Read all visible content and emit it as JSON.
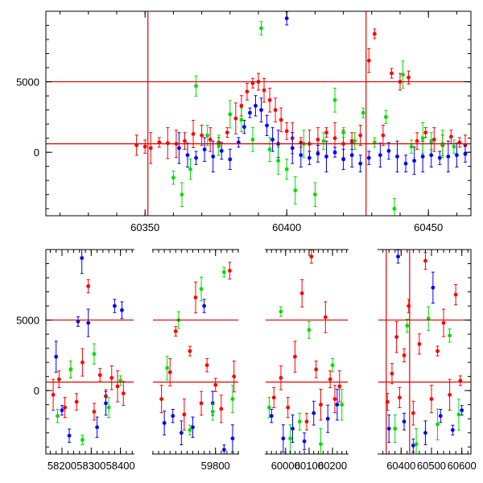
{
  "chart_data": [
    {
      "type": "scatter",
      "panel": "top",
      "title": "",
      "xlabel": "",
      "ylabel": "",
      "xlim": [
        60315,
        60465
      ],
      "ylim": [
        -4500,
        10000
      ],
      "xticks": [
        60350,
        60400,
        60450
      ],
      "xticklabels": [
        "60350",
        "60400",
        "60450"
      ],
      "yticks": [
        0,
        5000
      ],
      "yticklabels": [
        "0",
        "5000"
      ],
      "hlines": [
        600,
        5000
      ],
      "vlines": [
        60351,
        60428
      ],
      "line_color": "#e00000",
      "series": [
        {
          "color": "#ff0000",
          "points": [
            [
              60347,
              500
            ],
            [
              60350,
              400
            ],
            [
              60352,
              300
            ],
            [
              60355,
              700
            ],
            [
              60358,
              650
            ],
            [
              60361,
              600
            ],
            [
              60364,
              800
            ],
            [
              60367,
              1300
            ],
            [
              60370,
              1200
            ],
            [
              60373,
              900
            ],
            [
              60376,
              700
            ],
            [
              60379,
              1400
            ],
            [
              60382,
              2400
            ],
            [
              60384,
              3300
            ],
            [
              60386,
              4300
            ],
            [
              60388,
              4900
            ],
            [
              60390,
              5000
            ],
            [
              60392,
              4400
            ],
            [
              60394,
              3700
            ],
            [
              60396,
              3000
            ],
            [
              60398,
              2300
            ],
            [
              60400,
              1500
            ],
            [
              60402,
              1000
            ],
            [
              60405,
              700
            ],
            [
              60408,
              600
            ],
            [
              60411,
              900
            ],
            [
              60414,
              1400
            ],
            [
              60417,
              1000
            ],
            [
              60420,
              600
            ],
            [
              60423,
              800
            ],
            [
              60426,
              1200
            ],
            [
              60429,
              6500
            ],
            [
              60431,
              8400
            ],
            [
              60434,
              1200
            ],
            [
              60437,
              5600
            ],
            [
              60440,
              5000
            ],
            [
              60443,
              5300
            ],
            [
              60446,
              800
            ],
            [
              60449,
              1400
            ],
            [
              60452,
              900
            ],
            [
              60455,
              500
            ],
            [
              60458,
              1100
            ],
            [
              60461,
              700
            ],
            [
              60463,
              500
            ]
          ]
        },
        {
          "color": "#0000ff",
          "points": [
            [
              60362,
              300
            ],
            [
              60365,
              -200
            ],
            [
              60368,
              -400
            ],
            [
              60371,
              200
            ],
            [
              60374,
              -300
            ],
            [
              60377,
              100
            ],
            [
              60380,
              -500
            ],
            [
              60383,
              700
            ],
            [
              60385,
              1800
            ],
            [
              60387,
              2800
            ],
            [
              60389,
              3300
            ],
            [
              60391,
              3000
            ],
            [
              60393,
              1900
            ],
            [
              60395,
              900
            ],
            [
              60397,
              600
            ],
            [
              60400,
              9500
            ],
            [
              60402,
              300
            ],
            [
              60405,
              -200
            ],
            [
              60408,
              -400
            ],
            [
              60411,
              -100
            ],
            [
              60414,
              -300
            ],
            [
              60417,
              0
            ],
            [
              60420,
              -500
            ],
            [
              60423,
              -200
            ],
            [
              60426,
              -800
            ],
            [
              60429,
              -400
            ],
            [
              60433,
              -200
            ],
            [
              60436,
              100
            ],
            [
              60439,
              -300
            ],
            [
              60442,
              -800
            ],
            [
              60445,
              -600
            ],
            [
              60448,
              -300
            ],
            [
              60451,
              -200
            ],
            [
              60454,
              -400
            ],
            [
              60457,
              -300
            ],
            [
              60460,
              -200
            ],
            [
              60463,
              -100
            ]
          ]
        },
        {
          "color": "#00dd00",
          "points": [
            [
              60360,
              -1800
            ],
            [
              60363,
              -3000
            ],
            [
              60366,
              -1200
            ],
            [
              60368,
              4700
            ],
            [
              60372,
              1200
            ],
            [
              60376,
              500
            ],
            [
              60380,
              2700
            ],
            [
              60384,
              2300
            ],
            [
              60388,
              900
            ],
            [
              60391,
              8800
            ],
            [
              60394,
              200
            ],
            [
              60397,
              -600
            ],
            [
              60400,
              -1200
            ],
            [
              60403,
              -2700
            ],
            [
              60406,
              600
            ],
            [
              60410,
              -3000
            ],
            [
              60413,
              800
            ],
            [
              60417,
              3700
            ],
            [
              60420,
              1400
            ],
            [
              60424,
              800
            ],
            [
              60427,
              2800
            ],
            [
              60431,
              700
            ],
            [
              60435,
              2500
            ],
            [
              60438,
              -4000
            ],
            [
              60441,
              5500
            ],
            [
              60444,
              400
            ],
            [
              60448,
              1000
            ],
            [
              60451,
              800
            ],
            [
              60455,
              600
            ],
            [
              60459,
              400
            ]
          ]
        }
      ]
    },
    {
      "type": "scatter",
      "panel": "bottom",
      "title": "",
      "xlabel": "",
      "ylabel": "",
      "broken_axis": true,
      "segments": [
        {
          "xlim": [
            58145,
            58445
          ],
          "xticks": [
            58200,
            58300,
            58400
          ],
          "xticklabels": [
            "58200",
            "58300",
            "58400"
          ]
        },
        {
          "xlim": [
            59580,
            59880
          ],
          "xticks": [
            59800
          ],
          "xticklabels": [
            "59800"
          ]
        },
        {
          "xlim": [
            59915,
            60265
          ],
          "xticks": [
            60000,
            60100,
            60200
          ],
          "xticklabels": [
            "60000",
            "60100",
            "60200"
          ]
        },
        {
          "xlim": [
            60325,
            60630
          ],
          "xticks": [
            60400,
            60500,
            60600
          ],
          "xticklabels": [
            "60400",
            "60500",
            "60600"
          ]
        }
      ],
      "ylim": [
        -4500,
        10000
      ],
      "yticks": [
        0,
        5000
      ],
      "yticklabels": [
        "0",
        "5000"
      ],
      "hlines": [
        600,
        5000
      ],
      "vlines": [
        60351,
        60428
      ],
      "line_color": "#e00000",
      "series": [
        {
          "color": "#ff0000",
          "points": [
            [
              58170,
              -300
            ],
            [
              58190,
              800
            ],
            [
              58210,
              -1200
            ],
            [
              58230,
              1500
            ],
            [
              58250,
              -800
            ],
            [
              58270,
              2000
            ],
            [
              58290,
              7400
            ],
            [
              58310,
              -1500
            ],
            [
              58330,
              1100
            ],
            [
              58350,
              -400
            ],
            [
              58370,
              900
            ],
            [
              58390,
              300
            ],
            [
              58410,
              -200
            ],
            [
              59610,
              -600
            ],
            [
              59640,
              1300
            ],
            [
              59660,
              4200
            ],
            [
              59690,
              -1700
            ],
            [
              59710,
              2800
            ],
            [
              59730,
              6600
            ],
            [
              59750,
              -900
            ],
            [
              59770,
              1800
            ],
            [
              59800,
              400
            ],
            [
              59820,
              -1300
            ],
            [
              59850,
              8500
            ],
            [
              59865,
              1000
            ],
            [
              59950,
              -500
            ],
            [
              59980,
              900
            ],
            [
              60010,
              -1200
            ],
            [
              60040,
              2400
            ],
            [
              60070,
              6900
            ],
            [
              60090,
              -2200
            ],
            [
              60110,
              9500
            ],
            [
              60130,
              1500
            ],
            [
              60150,
              -1000
            ],
            [
              60170,
              5200
            ],
            [
              60190,
              800
            ],
            [
              60210,
              -600
            ],
            [
              60230,
              300
            ],
            [
              60355,
              -800
            ],
            [
              60370,
              1200
            ],
            [
              60385,
              3800
            ],
            [
              60395,
              -500
            ],
            [
              60410,
              2500
            ],
            [
              60425,
              6000
            ],
            [
              60440,
              -1600
            ],
            [
              60460,
              3300
            ],
            [
              60480,
              9200
            ],
            [
              60500,
              -600
            ],
            [
              60520,
              2800
            ],
            [
              60540,
              4800
            ],
            [
              60560,
              -300
            ],
            [
              60580,
              6800
            ],
            [
              60595,
              700
            ]
          ]
        },
        {
          "color": "#0000ff",
          "points": [
            [
              58180,
              2400
            ],
            [
              58200,
              -1400
            ],
            [
              58225,
              -3200
            ],
            [
              58255,
              4900
            ],
            [
              58268,
              9400
            ],
            [
              58290,
              4800
            ],
            [
              58320,
              -2600
            ],
            [
              58350,
              -900
            ],
            [
              58380,
              6000
            ],
            [
              58405,
              5700
            ],
            [
              59620,
              -2300
            ],
            [
              59650,
              -1800
            ],
            [
              59680,
              -3000
            ],
            [
              59720,
              -2600
            ],
            [
              59760,
              6000
            ],
            [
              59790,
              -900
            ],
            [
              59830,
              -4200
            ],
            [
              59860,
              -3400
            ],
            [
              59940,
              -1800
            ],
            [
              59990,
              -3400
            ],
            [
              60030,
              -2700
            ],
            [
              60080,
              -3600
            ],
            [
              60120,
              -1600
            ],
            [
              60180,
              -2000
            ],
            [
              60220,
              -1000
            ],
            [
              60360,
              -2700
            ],
            [
              60390,
              9500
            ],
            [
              60410,
              -2200
            ],
            [
              60440,
              -3900
            ],
            [
              60480,
              -3000
            ],
            [
              60505,
              7300
            ],
            [
              60530,
              -1800
            ],
            [
              60570,
              -2800
            ],
            [
              60600,
              -1400
            ]
          ]
        },
        {
          "color": "#00dd00",
          "points": [
            [
              58185,
              -1800
            ],
            [
              58230,
              1500
            ],
            [
              58270,
              -3500
            ],
            [
              58310,
              2600
            ],
            [
              58360,
              -1200
            ],
            [
              58400,
              700
            ],
            [
              59630,
              1600
            ],
            [
              59670,
              5000
            ],
            [
              59710,
              -2800
            ],
            [
              59750,
              7200
            ],
            [
              59790,
              -1500
            ],
            [
              59830,
              8400
            ],
            [
              59860,
              -600
            ],
            [
              59930,
              -1200
            ],
            [
              59980,
              5600
            ],
            [
              60020,
              -3400
            ],
            [
              60060,
              -2200
            ],
            [
              60100,
              4300
            ],
            [
              60150,
              -3800
            ],
            [
              60200,
              1800
            ],
            [
              60240,
              -1000
            ],
            [
              60380,
              -2700
            ],
            [
              60420,
              4600
            ],
            [
              60450,
              -3800
            ],
            [
              60490,
              5100
            ],
            [
              60520,
              -2400
            ],
            [
              60560,
              3900
            ],
            [
              60590,
              -1700
            ]
          ]
        }
      ]
    }
  ]
}
